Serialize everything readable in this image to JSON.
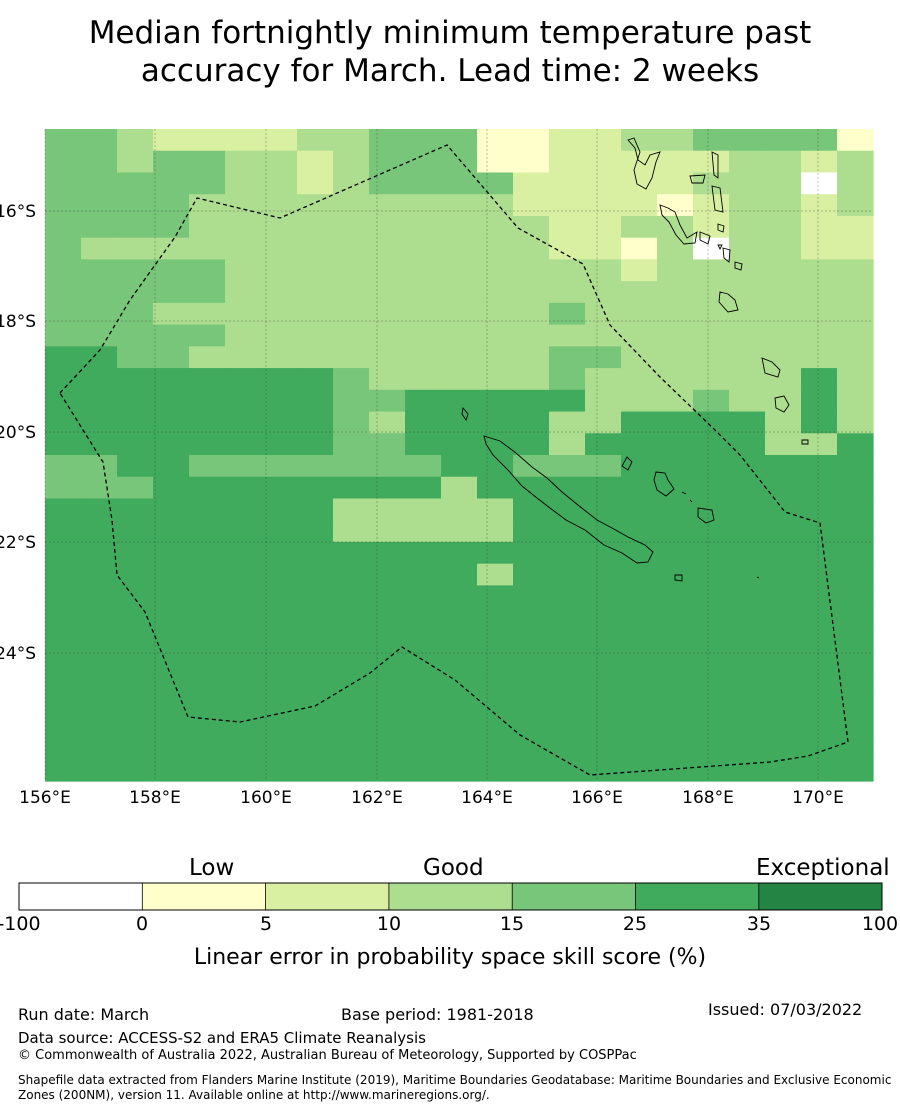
{
  "title_line1": "Median fortnightly minimum temperature past",
  "title_line2": "accuracy for March. Lead time: 2 weeks",
  "map": {
    "lon_labels": [
      "156°E",
      "158°E",
      "160°E",
      "162°E",
      "164°E",
      "166°E",
      "168°E",
      "170°E"
    ],
    "lat_labels": [
      "16°S",
      "18°S",
      "20°S",
      "22°S",
      "24°S"
    ],
    "grid_category_rows": [
      "44322223344411223344441",
      "44344332344411222223323",
      "44444332344442222233303",
      "44443333333332222123323",
      "44443333333333223323322",
      "43333333333333221303322",
      "44444333333333332333333",
      "44444333333333333333333",
      "44433333333333433333333",
      "44444333333333333333333",
      "55443333333333443333333",
      "55555555433333433333353",
      "55555555445555533343353",
      "55555555435555335555353",
      "55555555445555355555335",
      "44554444444554445555555",
      "44455555555355555555555",
      "55555555333335555555555",
      "55555555333335555555555",
      "55555555555555555555555",
      "55555555555535555555555",
      "55555555555555555555555",
      "55555555555555555555555",
      "55555555555555555555555",
      "55555555555555555555555",
      "55555555555555555555555",
      "55555555555555555555555",
      "55555555555555555555555",
      "55555555555555555555555",
      "55555555555555555555555"
    ],
    "category_colors": [
      "#ffffff",
      "#ffffcc",
      "#d9f0a3",
      "#addd8e",
      "#78c679",
      "#41ab5d",
      "#238443"
    ],
    "boundary_color": "#000000"
  },
  "colorbar": {
    "header_low": "Low",
    "header_good": "Good",
    "header_exceptional": "Exceptional",
    "ticks": [
      "-100",
      "0",
      "5",
      "10",
      "15",
      "25",
      "35",
      "100"
    ],
    "label": "Linear error in probability space skill score (%)"
  },
  "footer": {
    "run_date": "Run date: March",
    "base_period": "Base period: 1981-2018",
    "issued": "Issued: 07/03/2022",
    "data_source": "Data source: ACCESS-S2 and ERA5 Climate Reanalysis",
    "copyright": "© Commonwealth of Australia 2022, Australian Bureau of Meteorology, Supported by COSPPac",
    "shapefile_line1": "Shapefile data extracted from Flanders Marine Institute (2019), Maritime Boundaries Geodatabase: Maritime Boundaries and Exclusive Economic",
    "shapefile_line2": "Zones (200NM), version 11. Available online at http://www.marineregions.org/."
  }
}
